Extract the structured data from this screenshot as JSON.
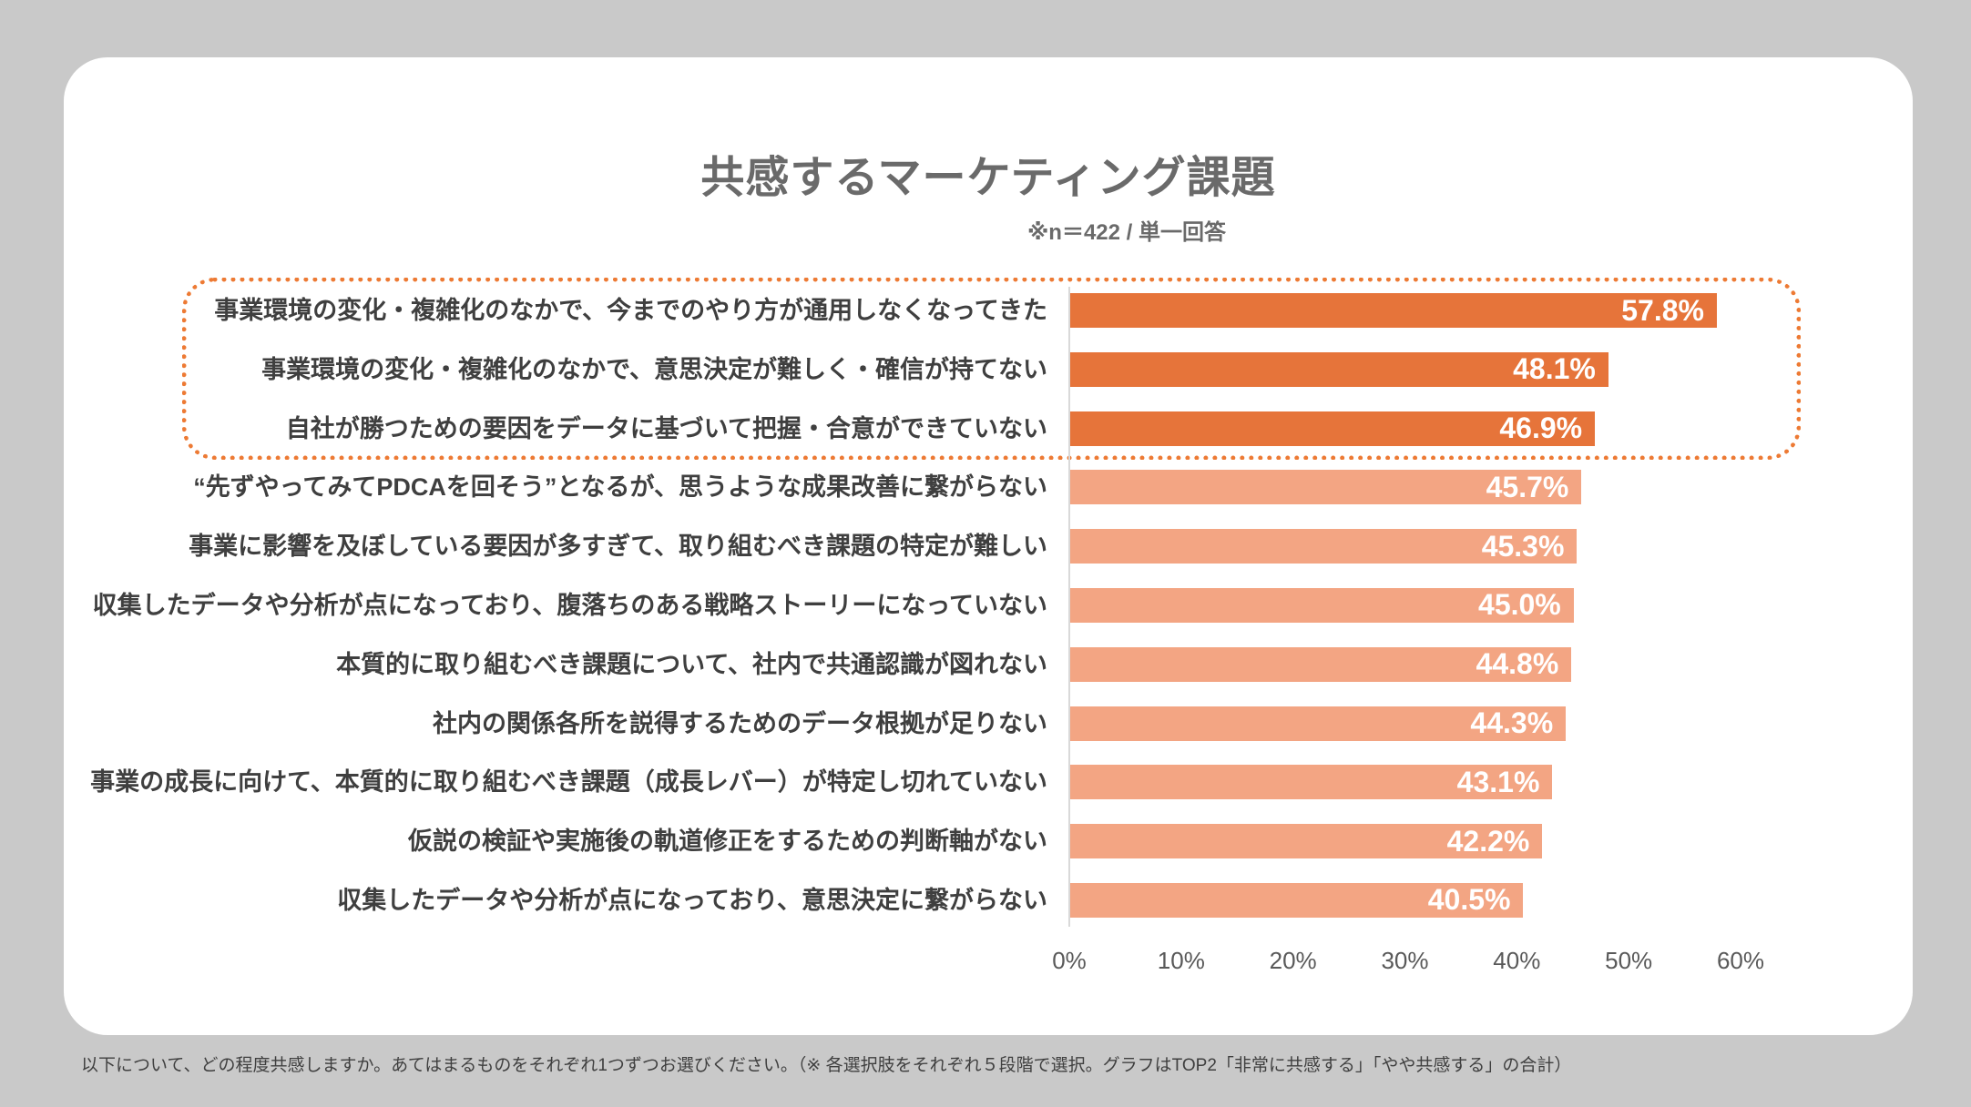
{
  "background": "#C9C9C9",
  "chart_data": {
    "type": "bar",
    "orientation": "horizontal",
    "title": "共感するマーケティング課題",
    "subtitle": "※n＝422 / 単一回答",
    "categories": [
      "事業環境の変化・複雑化のなかで、今までのやり方が通用しなくなってきた",
      "事業環境の変化・複雑化のなかで、意思決定が難しく・確信が持てない",
      "自社が勝つための要因をデータに基づいて把握・合意ができていない",
      "“先ずやってみてPDCAを回そう”となるが、思うような成果改善に繋がらない",
      "事業に影響を及ぼしている要因が多すぎて、取り組むべき課題の特定が難しい",
      "収集したデータや分析が点になっており、腹落ちのある戦略ストーリーになっていない",
      "本質的に取り組むべき課題について、社内で共通認識が図れない",
      "社内の関係各所を説得するためのデータ根拠が足りない",
      "事業の成長に向けて、本質的に取り組むべき課題（成長レバー）が特定し切れていない",
      "仮説の検証や実施後の軌道修正をするための判断軸がない",
      "収集したデータや分析が点になっており、意思決定に繋がらない"
    ],
    "values": [
      57.8,
      48.1,
      46.9,
      45.7,
      45.3,
      45.0,
      44.8,
      44.3,
      43.1,
      42.2,
      40.5
    ],
    "value_labels": [
      "57.8%",
      "48.1%",
      "46.9%",
      "45.7%",
      "45.3%",
      "45.0%",
      "44.8%",
      "44.3%",
      "43.1%",
      "42.2%",
      "40.5%"
    ],
    "unit": "%",
    "xlim": [
      0,
      60
    ],
    "x_ticks": [
      "0%",
      "10%",
      "20%",
      "30%",
      "40%",
      "50%",
      "60%"
    ],
    "highlight_top_n": 3,
    "legend": "none",
    "grid": "off",
    "colors": {
      "bar_highlight": "#E6743A",
      "bar_normal": "#F3A583",
      "callout_border": "#ED7A34",
      "value_text": "#FFFFFF"
    }
  },
  "footer": {
    "note": "以下について、どの程度共感しますか。あてはまるものをそれぞれ1つずつお選びください。（※ 各選択肢をそれぞれ５段階で選択。グラフはTOP2「非常に共感する」「やや共感する」の合計）"
  }
}
